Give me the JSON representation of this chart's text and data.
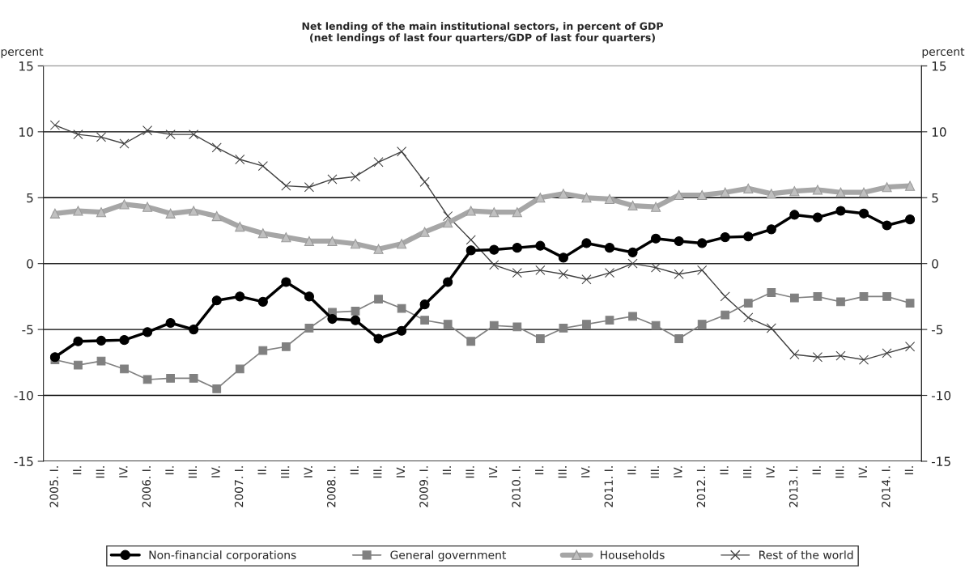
{
  "chart_data": {
    "type": "line",
    "title": "Net lending of the main institutional sectors, in percent of GDP\n(net lendings of last four quarters/GDP of last four quarters)",
    "ylabel": "percent",
    "y2label": "percent",
    "categories": [
      "2005. I.",
      "II.",
      "III.",
      "IV.",
      "2006. I.",
      "II.",
      "III.",
      "IV.",
      "2007. I.",
      "II.",
      "III.",
      "IV.",
      "2008. I.",
      "II.",
      "III.",
      "IV.",
      "2009. I.",
      "II.",
      "III.",
      "IV.",
      "2010. I.",
      "II.",
      "III.",
      "IV.",
      "2011. I.",
      "II.",
      "III.",
      "IV.",
      "2012. I.",
      "II.",
      "III.",
      "IV.",
      "2013. I.",
      "II.",
      "III.",
      "IV.",
      "2014. I.",
      "II."
    ],
    "series": [
      {
        "name": "Non-financial corporations",
        "color": "#000000",
        "marker": "circle",
        "values": [
          -7.1,
          -5.9,
          -5.85,
          -5.8,
          -5.2,
          -4.5,
          -5.0,
          -2.8,
          -2.5,
          -2.9,
          -1.4,
          -2.5,
          -4.2,
          -4.3,
          -5.7,
          -5.1,
          -3.1,
          -1.4,
          1.0,
          1.05,
          1.2,
          1.35,
          0.45,
          1.55,
          1.2,
          0.85,
          1.9,
          1.7,
          1.55,
          2.0,
          2.05,
          2.6,
          3.7,
          3.5,
          4.0,
          3.8,
          2.9,
          3.35
        ]
      },
      {
        "name": "General government",
        "color": "#808080",
        "marker": "square",
        "values": [
          -7.3,
          -7.7,
          -7.4,
          -8.0,
          -8.8,
          -8.7,
          -8.7,
          -9.5,
          -8.0,
          -6.6,
          -6.3,
          -4.9,
          -3.7,
          -3.6,
          -2.7,
          -3.4,
          -4.3,
          -4.6,
          -5.9,
          -4.7,
          -4.8,
          -5.7,
          -4.9,
          -4.6,
          -4.3,
          -4.0,
          -4.7,
          -5.7,
          -4.6,
          -3.9,
          -3.0,
          -2.2,
          -2.6,
          -2.5,
          -2.9,
          -2.5,
          -2.5,
          -3.0
        ]
      },
      {
        "name": "Households",
        "color": "#a6a6a6",
        "marker": "triangle",
        "values": [
          3.8,
          4.0,
          3.9,
          4.5,
          4.3,
          3.8,
          4.0,
          3.6,
          2.8,
          2.3,
          2.0,
          1.7,
          1.7,
          1.5,
          1.1,
          1.5,
          2.4,
          3.1,
          4.0,
          3.9,
          3.9,
          5.0,
          5.3,
          5.0,
          4.9,
          4.4,
          4.3,
          5.2,
          5.2,
          5.4,
          5.7,
          5.3,
          5.5,
          5.6,
          5.4,
          5.4,
          5.8,
          5.9
        ]
      },
      {
        "name": "Rest of the world",
        "color": "#404040",
        "marker": "cross",
        "values": [
          10.5,
          9.8,
          9.6,
          9.1,
          10.1,
          9.8,
          9.8,
          8.8,
          7.9,
          7.4,
          5.9,
          5.8,
          6.4,
          6.6,
          7.7,
          8.5,
          6.2,
          3.6,
          1.8,
          -0.1,
          -0.7,
          -0.5,
          -0.8,
          -1.2,
          -0.7,
          0.0,
          -0.3,
          -0.8,
          -0.5,
          -2.5,
          -4.1,
          -4.9,
          -6.9,
          -7.1,
          -7.0,
          -7.3,
          -6.8,
          -6.3
        ]
      }
    ],
    "ylim": [
      -15,
      15
    ],
    "yticks": [
      -15,
      -10,
      -5,
      0,
      5,
      10,
      15
    ],
    "y2lim": [
      -15,
      15
    ],
    "y2ticks": [
      -15,
      -10,
      -5,
      0,
      5,
      10,
      15
    ],
    "grid": "y",
    "legend": "bottom"
  }
}
